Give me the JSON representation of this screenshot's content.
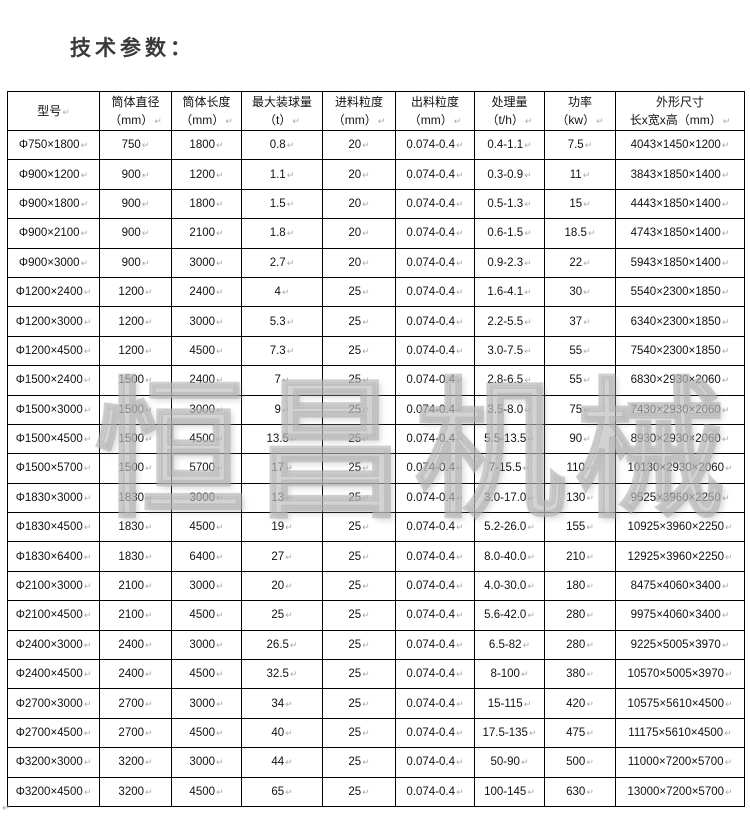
{
  "title": "技术参数：",
  "watermark": "恒昌机械",
  "table": {
    "headers": [
      [
        "型号"
      ],
      [
        "筒体直径",
        "（mm）"
      ],
      [
        "筒体长度",
        "（mm）"
      ],
      [
        "最大装球量",
        "（t）"
      ],
      [
        "进料粒度",
        "（mm）"
      ],
      [
        "出料粒度",
        "（mm）"
      ],
      [
        "处理量",
        "（t/h）"
      ],
      [
        "功率",
        "（kw）"
      ],
      [
        "外形尺寸",
        "长x宽x高（mm）"
      ]
    ],
    "rows": [
      [
        "Φ750×1800",
        "750",
        "1800",
        "0.8",
        "20",
        "0.074-0.4",
        "0.4-1.1",
        "7.5",
        "4043×1450×1200"
      ],
      [
        "Φ900×1200",
        "900",
        "1200",
        "1.1",
        "20",
        "0.074-0.4",
        "0.3-0.9",
        "11",
        "3843×1850×1400"
      ],
      [
        "Φ900×1800",
        "900",
        "1800",
        "1.5",
        "20",
        "0.074-0.4",
        "0.5-1.3",
        "15",
        "4443×1850×1400"
      ],
      [
        "Φ900×2100",
        "900",
        "2100",
        "1.8",
        "20",
        "0.074-0.4",
        "0.6-1.5",
        "18.5",
        "4743×1850×1400"
      ],
      [
        "Φ900×3000",
        "900",
        "3000",
        "2.7",
        "20",
        "0.074-0.4",
        "0.9-2.3",
        "22",
        "5943×1850×1400"
      ],
      [
        "Φ1200×2400",
        "1200",
        "2400",
        "4",
        "25",
        "0.074-0.4",
        "1.6-4.1",
        "30",
        "5540×2300×1850"
      ],
      [
        "Φ1200×3000",
        "1200",
        "3000",
        "5.3",
        "25",
        "0.074-0.4",
        "2.2-5.5",
        "37",
        "6340×2300×1850"
      ],
      [
        "Φ1200×4500",
        "1200",
        "4500",
        "7.3",
        "25",
        "0.074-0.4",
        "3.0-7.5",
        "55",
        "7540×2300×1850"
      ],
      [
        "Φ1500×2400",
        "1500",
        "2400",
        "7",
        "25",
        "0.074-0.4",
        "2.8-6.5",
        "55",
        "6830×2930×2060"
      ],
      [
        "Φ1500×3000",
        "1500",
        "3000",
        "9",
        "25",
        "0.074-0.4",
        "3.5-8.0",
        "75",
        "7430×2930×2060"
      ],
      [
        "Φ1500×4500",
        "1500",
        "4500",
        "13.5",
        "25",
        "0.074-0.4",
        "5.5-13.5",
        "90",
        "8930×2930×2060"
      ],
      [
        "Φ1500×5700",
        "1500",
        "5700",
        "17",
        "25",
        "0.074-0.4",
        "7-15.5",
        "110",
        "10130×2930×2060"
      ],
      [
        "Φ1830×3000",
        "1830",
        "3000",
        "13",
        "25",
        "0.074-0.4",
        "3.0-17.0",
        "130",
        "9525×3960×2250"
      ],
      [
        "Φ1830×4500",
        "1830",
        "4500",
        "19",
        "25",
        "0.074-0.4",
        "5.2-26.0",
        "155",
        "10925×3960×2250"
      ],
      [
        "Φ1830×6400",
        "1830",
        "6400",
        "27",
        "25",
        "0.074-0.4",
        "8.0-40.0",
        "210",
        "12925×3960×2250"
      ],
      [
        "Φ2100×3000",
        "2100",
        "3000",
        "20",
        "25",
        "0.074-0.4",
        "4.0-30.0",
        "180",
        "8475×4060×3400"
      ],
      [
        "Φ2100×4500",
        "2100",
        "4500",
        "25",
        "25",
        "0.074-0.4",
        "5.6-42.0",
        "280",
        "9975×4060×3400"
      ],
      [
        "Φ2400×3000",
        "2400",
        "3000",
        "26.5",
        "25",
        "0.074-0.4",
        "6.5-82",
        "280",
        "9225×5005×3970"
      ],
      [
        "Φ2400×4500",
        "2400",
        "4500",
        "32.5",
        "25",
        "0.074-0.4",
        "8-100",
        "380",
        "10570×5005×3970"
      ],
      [
        "Φ2700×3000",
        "2700",
        "3000",
        "34",
        "25",
        "0.074-0.4",
        "15-115",
        "420",
        "10575×5610×4500"
      ],
      [
        "Φ2700×4500",
        "2700",
        "4500",
        "40",
        "25",
        "0.074-0.4",
        "17.5-135",
        "475",
        "11175×5610×4500"
      ],
      [
        "Φ3200×3000",
        "3200",
        "3000",
        "44",
        "25",
        "0.074-0.4",
        "50-90",
        "500",
        "11000×7200×5700"
      ],
      [
        "Φ3200×4500",
        "3200",
        "4500",
        "65",
        "25",
        "0.074-0.4",
        "100-145",
        "630",
        "13000×7200×5700"
      ]
    ]
  }
}
